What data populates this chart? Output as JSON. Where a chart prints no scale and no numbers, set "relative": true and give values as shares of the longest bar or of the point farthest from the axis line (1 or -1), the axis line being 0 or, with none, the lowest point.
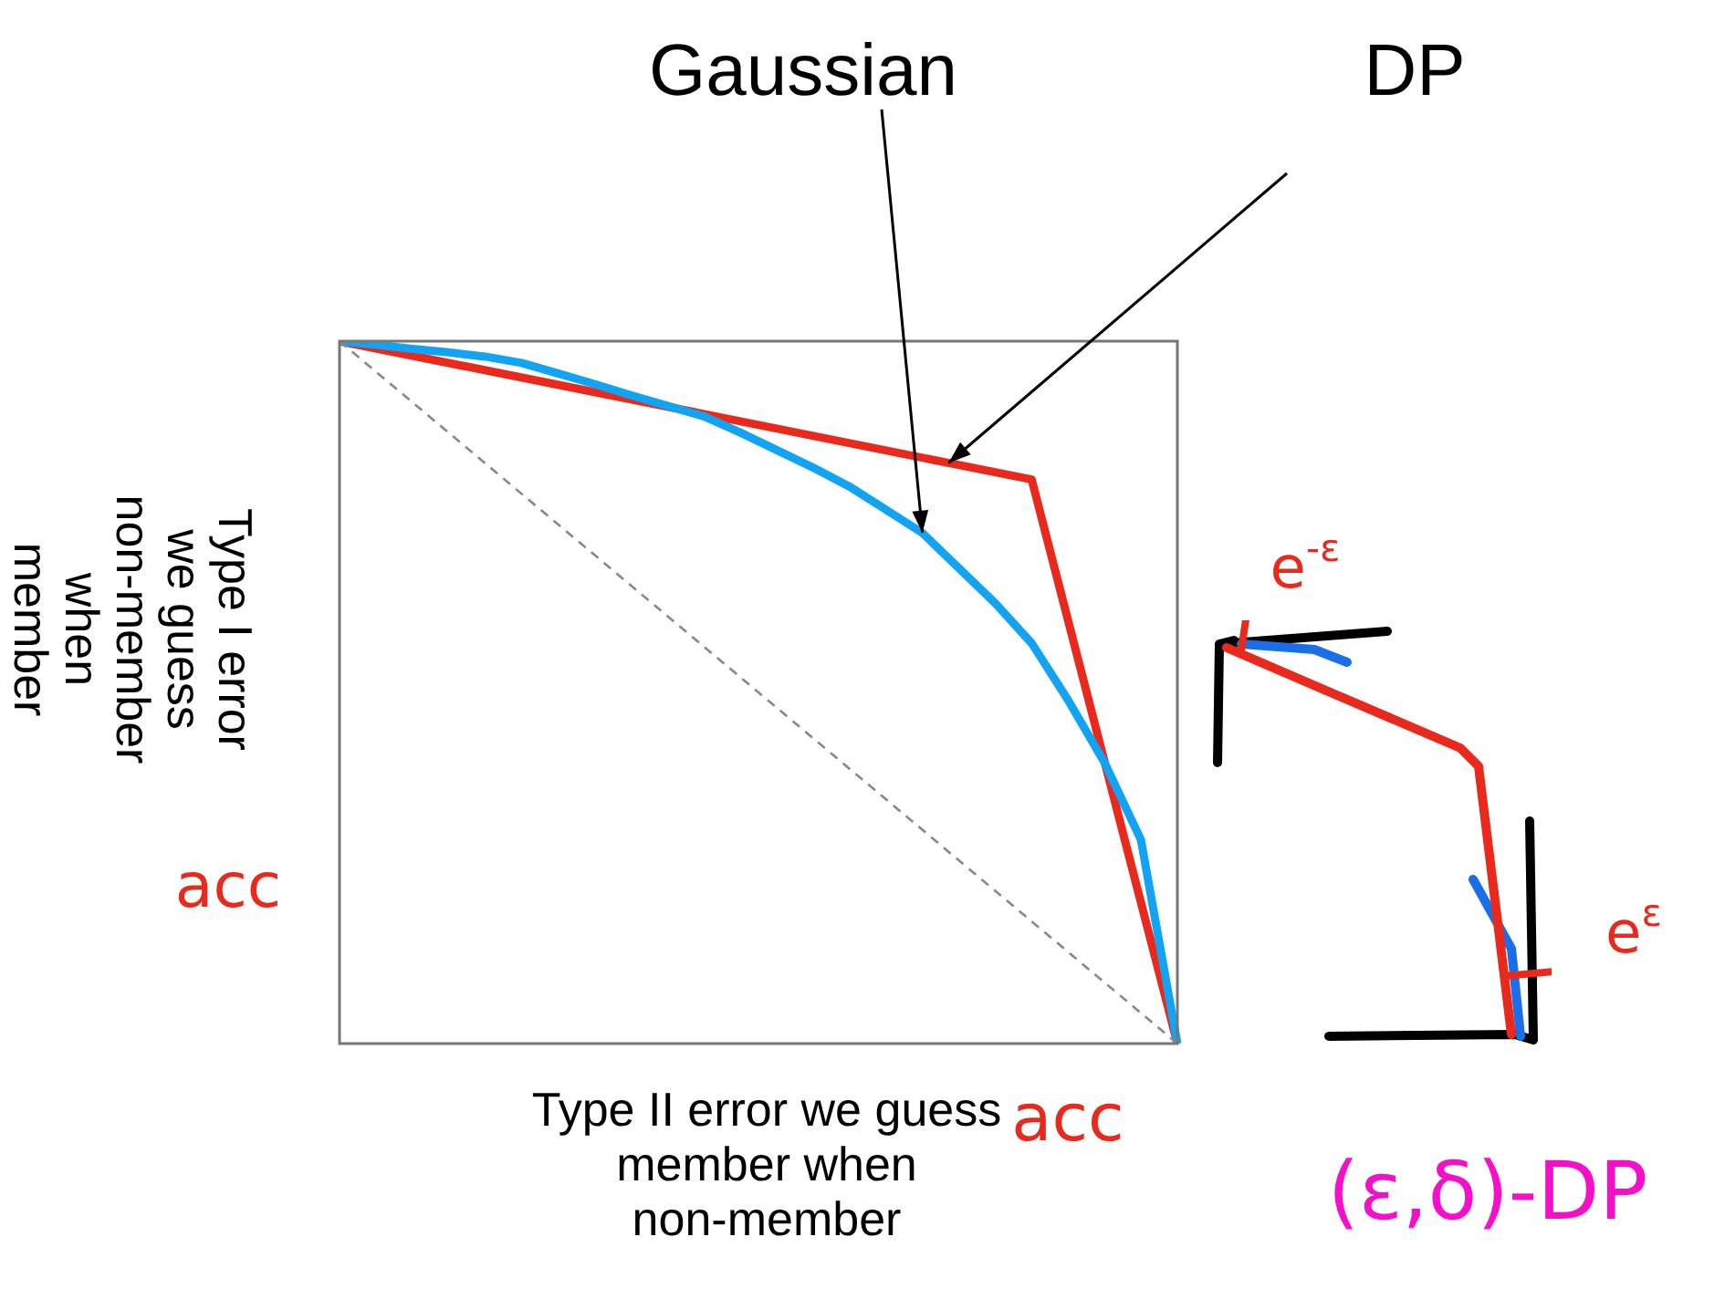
{
  "chart_data": {
    "type": "line",
    "relative": true,
    "marker": "none",
    "tick_labels": false,
    "xlabel": "Type II error we guess member when non-member",
    "ylabel": "Type I error we guess non-member when member",
    "categories": [
      null,
      null,
      null,
      null,
      null,
      null,
      null,
      null,
      null,
      null,
      null,
      null,
      null,
      null,
      null,
      null,
      null,
      null,
      null,
      null,
      null,
      null,
      null,
      null
    ],
    "series": [
      {
        "color": "#888888",
        "line_style": "dashed",
        "values": [
          1,
          null,
          null,
          null,
          null,
          null,
          null,
          null,
          null,
          null,
          null,
          null,
          null,
          null,
          null,
          null,
          null,
          null,
          null,
          null,
          null,
          null,
          null,
          0
        ]
      },
      {
        "color": "#12a4f2",
        "line_style": "solid",
        "values": [
          1,
          0.995,
          0.989,
          0.984,
          0.978,
          0.969,
          0.954,
          0.939,
          0.923,
          0.908,
          0.893,
          0.87,
          0.845,
          0.82,
          0.793,
          0.76,
          0.727,
          0.677,
          0.627,
          0.57,
          0.489,
          0.4,
          0.29,
          0
        ]
      },
      {
        "color": "#e8291c",
        "line_style": "solid",
        "values": [
          1,
          null,
          null,
          null,
          null,
          null,
          null,
          null,
          null,
          null,
          null,
          null,
          null,
          null,
          null,
          null,
          null,
          null,
          null,
          0.803,
          null,
          null,
          null,
          0
        ]
      }
    ],
    "annotations": [
      "Gaussian",
      "DP",
      "acc",
      "acc",
      "e$^{-ε}$",
      "e$^{ε}$",
      "(ε,δ)-DP"
    ]
  }
}
